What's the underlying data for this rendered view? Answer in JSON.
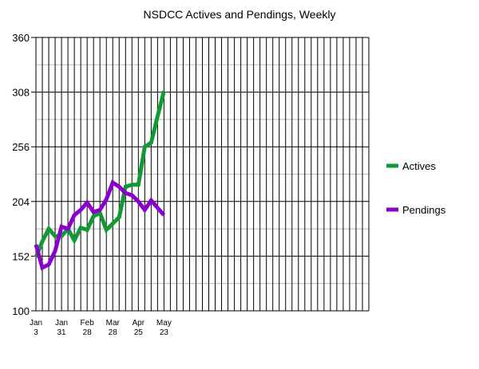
{
  "chart_data": {
    "type": "line",
    "title": "NSDCC Actives and Pendings, Weekly",
    "xlabel": "",
    "ylabel": "",
    "ylim": [
      100,
      360
    ],
    "yticks": [
      100,
      152,
      204,
      256,
      308,
      360
    ],
    "x_tick_labels": [
      {
        "week": 0,
        "line1": "Jan",
        "line2": "3"
      },
      {
        "week": 4,
        "line1": "Jan",
        "line2": "31"
      },
      {
        "week": 8,
        "line1": "Feb",
        "line2": "28"
      },
      {
        "week": 12,
        "line1": "Mar",
        "line2": "28"
      },
      {
        "week": 16,
        "line1": "Apr",
        "line2": "25"
      },
      {
        "week": 20,
        "line1": "May",
        "line2": "23"
      }
    ],
    "total_weeks": 52,
    "grid": true,
    "legend_position": "right",
    "series": [
      {
        "name": "Actives",
        "color": "#119933",
        "values": [
          151,
          166,
          178,
          171,
          171,
          178,
          167,
          179,
          177,
          190,
          193,
          177,
          183,
          189,
          218,
          220,
          220,
          256,
          260,
          285,
          309
        ]
      },
      {
        "name": "Pendings",
        "color": "#8b00cc",
        "values": [
          163,
          141,
          144,
          157,
          180,
          178,
          191,
          196,
          203,
          194,
          196,
          206,
          222,
          218,
          212,
          210,
          204,
          196,
          205,
          198,
          191
        ]
      }
    ]
  }
}
